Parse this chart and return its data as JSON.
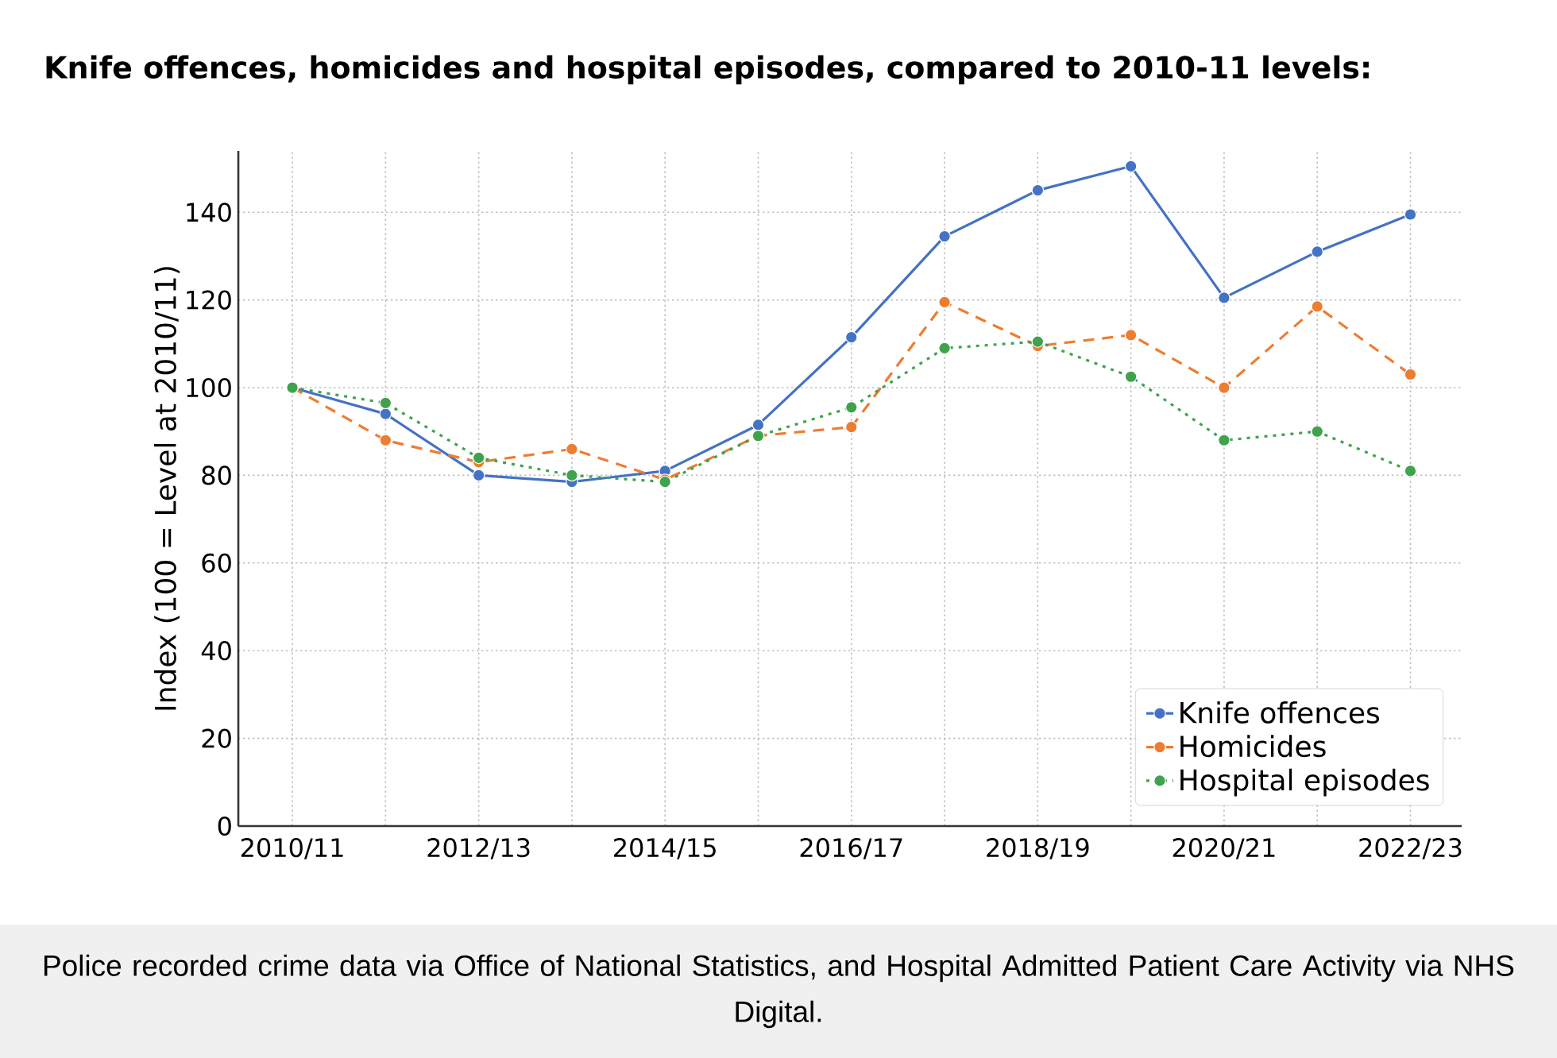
{
  "chart_data": {
    "type": "line",
    "title": "Knife offences, homicides and hospital episodes, compared to 2010-11 levels:",
    "ylabel": "Index (100 = Level at 2010/11)",
    "categories": [
      "2010/11",
      null,
      "2012/13",
      null,
      "2014/15",
      null,
      "2016/17",
      null,
      "2018/19",
      null,
      "2020/21",
      null,
      "2022/23"
    ],
    "series": [
      {
        "name": "Knife offences",
        "color": "#4472c4",
        "line_style": "solid",
        "values": [
          100,
          94,
          80,
          78.5,
          81,
          91.5,
          111.5,
          134.5,
          145,
          150.5,
          120.5,
          131,
          139.5
        ]
      },
      {
        "name": "Homicides",
        "color": "#ed7d31",
        "line_style": "dashed",
        "values": [
          100,
          88,
          83,
          86,
          79,
          89,
          91,
          119.5,
          109.5,
          112,
          100,
          118.5,
          103
        ]
      },
      {
        "name": "Hospital episodes",
        "color": "#3fa34d",
        "line_style": "dotted",
        "values": [
          100,
          96.5,
          84,
          80,
          78.5,
          89,
          95.5,
          109,
          110.5,
          102.5,
          88,
          90,
          81
        ]
      }
    ],
    "ylim": [
      0,
      154
    ],
    "yticks": [
      0,
      20,
      40,
      60,
      80,
      100,
      120,
      140
    ],
    "grid": true,
    "marker": "circle",
    "legend": "bottom right",
    "annotations": [
      "Police recorded crime data via Office of National Statistics, and Hospital Admitted Patient Care Activity via NHS Digital."
    ]
  }
}
